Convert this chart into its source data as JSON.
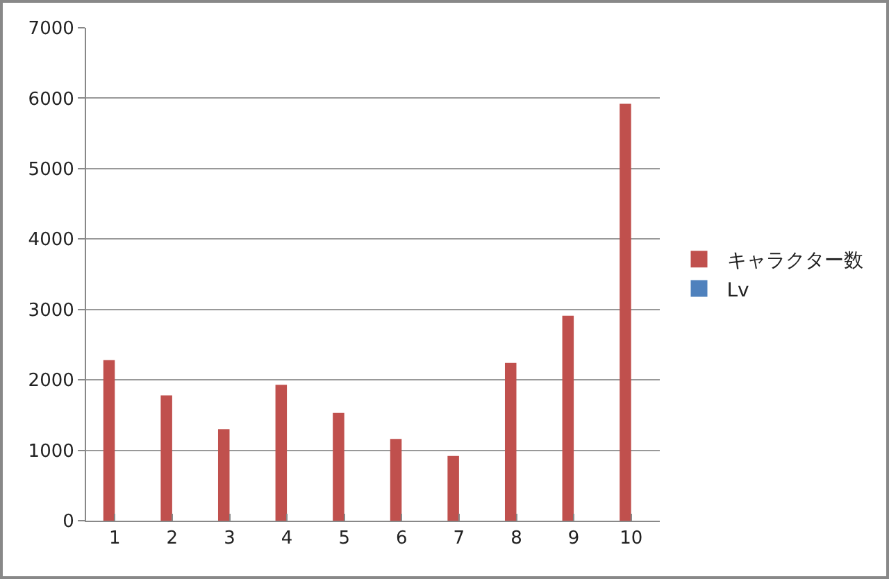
{
  "chart_data": {
    "type": "bar",
    "categories": [
      "1",
      "2",
      "3",
      "4",
      "5",
      "6",
      "7",
      "8",
      "9",
      "10"
    ],
    "series": [
      {
        "name": "キャラクター数",
        "color": "#c0504d",
        "values": [
          2280,
          1780,
          1300,
          1930,
          1530,
          1160,
          920,
          2240,
          2910,
          5920
        ]
      },
      {
        "name": "Lv",
        "color": "#4f81bd",
        "values": [
          null,
          null,
          null,
          null,
          null,
          null,
          null,
          null,
          null,
          null
        ]
      }
    ],
    "ylim": [
      0,
      7000
    ],
    "yticks": [
      0,
      1000,
      2000,
      3000,
      4000,
      5000,
      6000,
      7000
    ],
    "grid": "y",
    "legend": "right"
  }
}
